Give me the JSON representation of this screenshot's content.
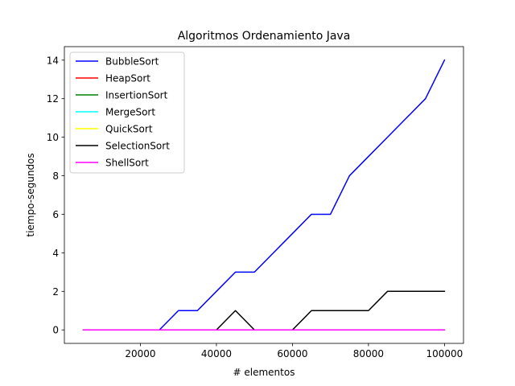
{
  "chart_data": {
    "type": "line",
    "title": "Algoritmos Ordenamiento Java",
    "xlabel": "# elementos",
    "ylabel": "tiempo-segundos",
    "xlim": [
      0,
      105000
    ],
    "ylim": [
      -0.7,
      14.7
    ],
    "xticks": [
      20000,
      40000,
      60000,
      80000,
      100000
    ],
    "yticks": [
      0,
      2,
      4,
      6,
      8,
      10,
      12,
      14
    ],
    "grid": false,
    "legend_position": "top-left",
    "x": [
      5000,
      10000,
      15000,
      20000,
      25000,
      30000,
      35000,
      40000,
      45000,
      50000,
      55000,
      60000,
      65000,
      70000,
      75000,
      80000,
      85000,
      90000,
      95000,
      100000
    ],
    "series": [
      {
        "name": "BubbleSort",
        "color": "#0000ff",
        "values": [
          0,
          0,
          0,
          0,
          0,
          1,
          1,
          2,
          3,
          3,
          4,
          5,
          6,
          6,
          8,
          9,
          10,
          11,
          12,
          14
        ]
      },
      {
        "name": "HeapSort",
        "color": "#ff0000",
        "values": [
          0,
          0,
          0,
          0,
          0,
          0,
          0,
          0,
          0,
          0,
          0,
          0,
          0,
          0,
          0,
          0,
          0,
          0,
          0,
          0
        ]
      },
      {
        "name": "InsertionSort",
        "color": "#008000",
        "values": [
          0,
          0,
          0,
          0,
          0,
          0,
          0,
          0,
          0,
          0,
          0,
          0,
          0,
          0,
          0,
          0,
          0,
          0,
          0,
          0
        ]
      },
      {
        "name": "MergeSort",
        "color": "#00ffff",
        "values": [
          0,
          0,
          0,
          0,
          0,
          0,
          0,
          0,
          0,
          0,
          0,
          0,
          0,
          0,
          0,
          0,
          0,
          0,
          0,
          0
        ]
      },
      {
        "name": "QuickSort",
        "color": "#ffff00",
        "values": [
          0,
          0,
          0,
          0,
          0,
          0,
          0,
          0,
          0,
          0,
          0,
          0,
          0,
          0,
          0,
          0,
          0,
          0,
          0,
          0
        ]
      },
      {
        "name": "SelectionSort",
        "color": "#000000",
        "values": [
          0,
          0,
          0,
          0,
          0,
          0,
          0,
          0,
          1,
          0,
          0,
          0,
          1,
          1,
          1,
          1,
          2,
          2,
          2,
          2
        ]
      },
      {
        "name": "ShellSort",
        "color": "#ff00ff",
        "values": [
          0,
          0,
          0,
          0,
          0,
          0,
          0,
          0,
          0,
          0,
          0,
          0,
          0,
          0,
          0,
          0,
          0,
          0,
          0,
          0
        ]
      }
    ]
  }
}
